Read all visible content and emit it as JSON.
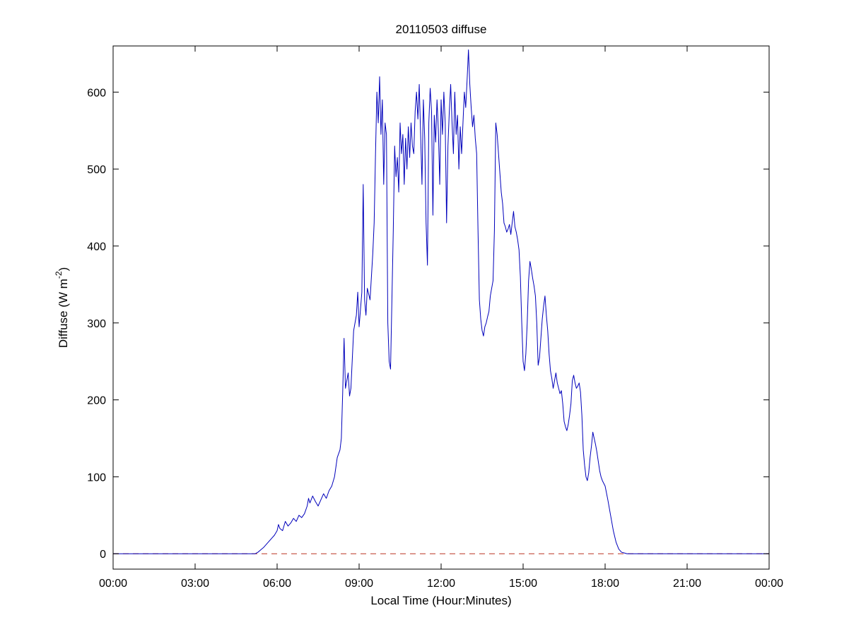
{
  "figure": {
    "background_color": "#ffffff",
    "axis_color": "#000000"
  },
  "chart_data": {
    "type": "line",
    "title": "20110503 diffuse",
    "xlabel": "Local Time (Hour:Minutes)",
    "ylabel": "Diffuse (W m⁻²)",
    "ylabel_parts": {
      "pre": "Diffuse (W m",
      "sup": "-2",
      "post": ")"
    },
    "xlim": [
      0,
      24
    ],
    "ylim": [
      -20,
      660
    ],
    "grid": false,
    "legend_position": "none",
    "x_ticks": [
      {
        "value": 0,
        "label": "00:00"
      },
      {
        "value": 3,
        "label": "03:00"
      },
      {
        "value": 6,
        "label": "06:00"
      },
      {
        "value": 9,
        "label": "09:00"
      },
      {
        "value": 12,
        "label": "12:00"
      },
      {
        "value": 15,
        "label": "15:00"
      },
      {
        "value": 18,
        "label": "18:00"
      },
      {
        "value": 21,
        "label": "21:00"
      },
      {
        "value": 24,
        "label": "00:00"
      }
    ],
    "y_ticks": [
      {
        "value": 0,
        "label": "0"
      },
      {
        "value": 100,
        "label": "100"
      },
      {
        "value": 200,
        "label": "200"
      },
      {
        "value": 300,
        "label": "300"
      },
      {
        "value": 400,
        "label": "400"
      },
      {
        "value": 500,
        "label": "500"
      },
      {
        "value": 600,
        "label": "600"
      }
    ],
    "reference_line": {
      "name": "zero-line",
      "y": 0,
      "color": "#bb3322",
      "style": "dashed"
    },
    "series": [
      {
        "name": "diffuse",
        "color": "#0000bb",
        "style": "solid",
        "x_units": "hours",
        "y_units": "W m-2",
        "points": [
          [
            0,
            0
          ],
          [
            1,
            0
          ],
          [
            2,
            0
          ],
          [
            3,
            0
          ],
          [
            4,
            0
          ],
          [
            5,
            0
          ],
          [
            5.2,
            0
          ],
          [
            5.3,
            2
          ],
          [
            5.4,
            5
          ],
          [
            5.5,
            8
          ],
          [
            5.6,
            12
          ],
          [
            5.7,
            16
          ],
          [
            5.8,
            20
          ],
          [
            5.9,
            24
          ],
          [
            6.0,
            30
          ],
          [
            6.05,
            38
          ],
          [
            6.1,
            33
          ],
          [
            6.2,
            30
          ],
          [
            6.3,
            42
          ],
          [
            6.4,
            36
          ],
          [
            6.5,
            40
          ],
          [
            6.6,
            46
          ],
          [
            6.7,
            42
          ],
          [
            6.8,
            50
          ],
          [
            6.9,
            47
          ],
          [
            7.0,
            52
          ],
          [
            7.1,
            62
          ],
          [
            7.15,
            72
          ],
          [
            7.2,
            66
          ],
          [
            7.3,
            75
          ],
          [
            7.4,
            68
          ],
          [
            7.5,
            62
          ],
          [
            7.6,
            70
          ],
          [
            7.7,
            78
          ],
          [
            7.8,
            72
          ],
          [
            7.9,
            82
          ],
          [
            8.0,
            88
          ],
          [
            8.1,
            100
          ],
          [
            8.2,
            125
          ],
          [
            8.3,
            135
          ],
          [
            8.35,
            150
          ],
          [
            8.4,
            210
          ],
          [
            8.45,
            280
          ],
          [
            8.5,
            215
          ],
          [
            8.6,
            235
          ],
          [
            8.65,
            205
          ],
          [
            8.7,
            215
          ],
          [
            8.8,
            290
          ],
          [
            8.9,
            310
          ],
          [
            8.95,
            340
          ],
          [
            9.0,
            295
          ],
          [
            9.1,
            340
          ],
          [
            9.15,
            480
          ],
          [
            9.2,
            330
          ],
          [
            9.25,
            310
          ],
          [
            9.3,
            345
          ],
          [
            9.4,
            330
          ],
          [
            9.5,
            390
          ],
          [
            9.55,
            430
          ],
          [
            9.6,
            520
          ],
          [
            9.65,
            600
          ],
          [
            9.7,
            560
          ],
          [
            9.75,
            620
          ],
          [
            9.8,
            545
          ],
          [
            9.85,
            590
          ],
          [
            9.9,
            480
          ],
          [
            9.95,
            560
          ],
          [
            10.0,
            545
          ],
          [
            10.05,
            300
          ],
          [
            10.1,
            250
          ],
          [
            10.15,
            240
          ],
          [
            10.2,
            330
          ],
          [
            10.25,
            420
          ],
          [
            10.3,
            530
          ],
          [
            10.35,
            490
          ],
          [
            10.4,
            515
          ],
          [
            10.45,
            470
          ],
          [
            10.5,
            560
          ],
          [
            10.55,
            520
          ],
          [
            10.6,
            545
          ],
          [
            10.65,
            480
          ],
          [
            10.7,
            540
          ],
          [
            10.75,
            500
          ],
          [
            10.8,
            555
          ],
          [
            10.85,
            515
          ],
          [
            10.9,
            560
          ],
          [
            10.95,
            530
          ],
          [
            11.0,
            520
          ],
          [
            11.05,
            575
          ],
          [
            11.1,
            600
          ],
          [
            11.15,
            565
          ],
          [
            11.2,
            610
          ],
          [
            11.25,
            545
          ],
          [
            11.3,
            480
          ],
          [
            11.35,
            590
          ],
          [
            11.4,
            540
          ],
          [
            11.45,
            430
          ],
          [
            11.5,
            375
          ],
          [
            11.55,
            560
          ],
          [
            11.6,
            605
          ],
          [
            11.65,
            575
          ],
          [
            11.7,
            440
          ],
          [
            11.75,
            570
          ],
          [
            11.8,
            535
          ],
          [
            11.85,
            590
          ],
          [
            11.9,
            550
          ],
          [
            11.95,
            480
          ],
          [
            12.0,
            590
          ],
          [
            12.05,
            545
          ],
          [
            12.1,
            600
          ],
          [
            12.15,
            560
          ],
          [
            12.2,
            430
          ],
          [
            12.25,
            530
          ],
          [
            12.3,
            575
          ],
          [
            12.35,
            610
          ],
          [
            12.4,
            560
          ],
          [
            12.45,
            520
          ],
          [
            12.5,
            600
          ],
          [
            12.55,
            545
          ],
          [
            12.6,
            570
          ],
          [
            12.65,
            500
          ],
          [
            12.7,
            555
          ],
          [
            12.75,
            520
          ],
          [
            12.8,
            560
          ],
          [
            12.85,
            600
          ],
          [
            12.9,
            580
          ],
          [
            12.95,
            615
          ],
          [
            13.0,
            655
          ],
          [
            13.05,
            610
          ],
          [
            13.1,
            580
          ],
          [
            13.15,
            555
          ],
          [
            13.2,
            570
          ],
          [
            13.25,
            540
          ],
          [
            13.3,
            520
          ],
          [
            13.35,
            420
          ],
          [
            13.4,
            330
          ],
          [
            13.45,
            305
          ],
          [
            13.5,
            290
          ],
          [
            13.55,
            283
          ],
          [
            13.6,
            295
          ],
          [
            13.65,
            300
          ],
          [
            13.7,
            308
          ],
          [
            13.75,
            315
          ],
          [
            13.8,
            335
          ],
          [
            13.85,
            345
          ],
          [
            13.9,
            355
          ],
          [
            13.95,
            420
          ],
          [
            14.0,
            560
          ],
          [
            14.05,
            545
          ],
          [
            14.1,
            520
          ],
          [
            14.15,
            495
          ],
          [
            14.2,
            470
          ],
          [
            14.25,
            455
          ],
          [
            14.3,
            430
          ],
          [
            14.35,
            425
          ],
          [
            14.4,
            418
          ],
          [
            14.45,
            422
          ],
          [
            14.5,
            428
          ],
          [
            14.55,
            415
          ],
          [
            14.6,
            430
          ],
          [
            14.65,
            445
          ],
          [
            14.7,
            425
          ],
          [
            14.75,
            418
          ],
          [
            14.8,
            408
          ],
          [
            14.85,
            395
          ],
          [
            14.9,
            360
          ],
          [
            14.95,
            300
          ],
          [
            15.0,
            250
          ],
          [
            15.05,
            238
          ],
          [
            15.1,
            260
          ],
          [
            15.15,
            300
          ],
          [
            15.2,
            355
          ],
          [
            15.25,
            380
          ],
          [
            15.3,
            370
          ],
          [
            15.35,
            358
          ],
          [
            15.4,
            348
          ],
          [
            15.45,
            335
          ],
          [
            15.5,
            300
          ],
          [
            15.55,
            245
          ],
          [
            15.6,
            255
          ],
          [
            15.65,
            280
          ],
          [
            15.7,
            305
          ],
          [
            15.75,
            322
          ],
          [
            15.8,
            335
          ],
          [
            15.85,
            310
          ],
          [
            15.9,
            290
          ],
          [
            15.95,
            260
          ],
          [
            16.0,
            238
          ],
          [
            16.05,
            228
          ],
          [
            16.1,
            215
          ],
          [
            16.15,
            225
          ],
          [
            16.2,
            235
          ],
          [
            16.25,
            222
          ],
          [
            16.3,
            215
          ],
          [
            16.35,
            208
          ],
          [
            16.4,
            212
          ],
          [
            16.45,
            195
          ],
          [
            16.5,
            172
          ],
          [
            16.55,
            165
          ],
          [
            16.6,
            160
          ],
          [
            16.65,
            168
          ],
          [
            16.7,
            180
          ],
          [
            16.75,
            195
          ],
          [
            16.8,
            225
          ],
          [
            16.85,
            232
          ],
          [
            16.9,
            222
          ],
          [
            16.95,
            215
          ],
          [
            17.0,
            218
          ],
          [
            17.05,
            222
          ],
          [
            17.1,
            210
          ],
          [
            17.15,
            180
          ],
          [
            17.2,
            135
          ],
          [
            17.25,
            115
          ],
          [
            17.3,
            100
          ],
          [
            17.35,
            95
          ],
          [
            17.4,
            105
          ],
          [
            17.45,
            125
          ],
          [
            17.5,
            140
          ],
          [
            17.55,
            158
          ],
          [
            17.6,
            150
          ],
          [
            17.65,
            142
          ],
          [
            17.7,
            132
          ],
          [
            17.75,
            120
          ],
          [
            17.8,
            108
          ],
          [
            17.85,
            100
          ],
          [
            17.9,
            95
          ],
          [
            18.0,
            88
          ],
          [
            18.1,
            70
          ],
          [
            18.2,
            50
          ],
          [
            18.3,
            30
          ],
          [
            18.4,
            15
          ],
          [
            18.5,
            6
          ],
          [
            18.6,
            2
          ],
          [
            18.7,
            1
          ],
          [
            18.8,
            0
          ],
          [
            19.0,
            0
          ],
          [
            20.0,
            0
          ],
          [
            21.0,
            0
          ],
          [
            22.0,
            0
          ],
          [
            23.0,
            0
          ],
          [
            24.0,
            0
          ]
        ]
      }
    ]
  }
}
